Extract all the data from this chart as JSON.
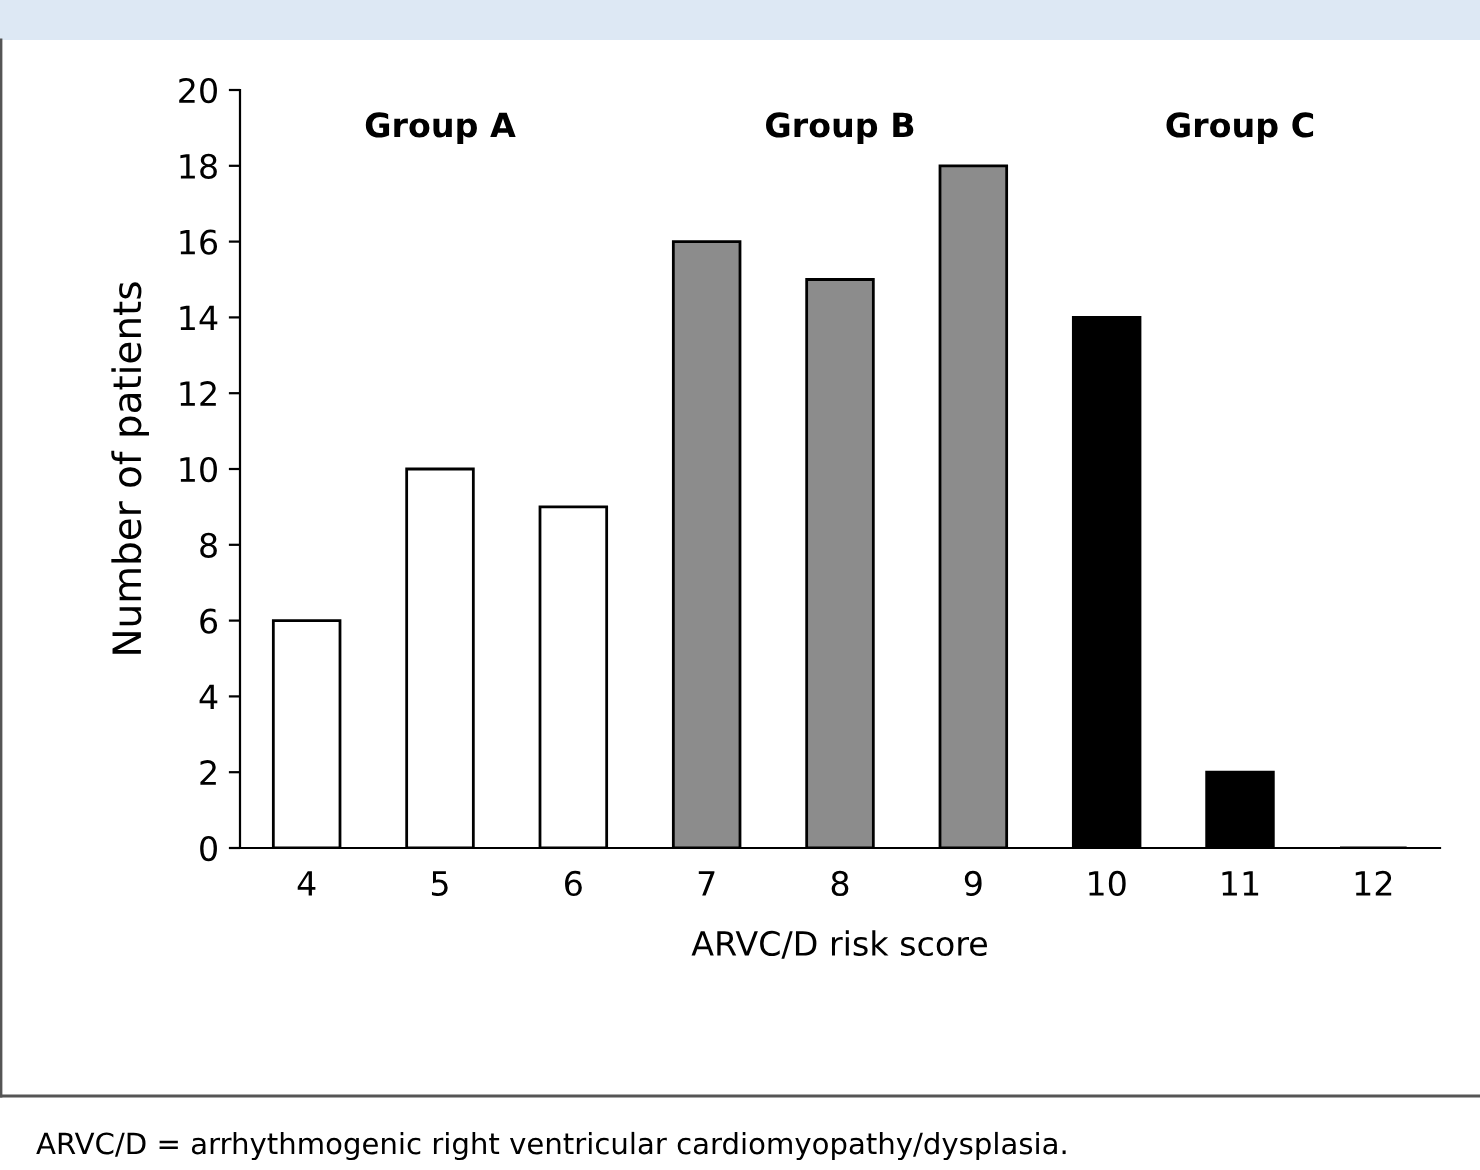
{
  "chart_data": {
    "type": "bar",
    "xlabel": "ARVC/D risk score",
    "ylabel": "Number of patients",
    "categories": [
      "4",
      "5",
      "6",
      "7",
      "8",
      "9",
      "10",
      "11",
      "12"
    ],
    "values": [
      6,
      10,
      9,
      16,
      15,
      18,
      14,
      2,
      0
    ],
    "colors": [
      "#ffffff",
      "#ffffff",
      "#ffffff",
      "#8c8c8c",
      "#8c8c8c",
      "#8c8c8c",
      "#000000",
      "#000000",
      "#000000"
    ],
    "ylim": [
      0,
      20
    ],
    "yticks": [
      0,
      2,
      4,
      6,
      8,
      10,
      12,
      14,
      16,
      18,
      20
    ],
    "grid": false,
    "legend": false,
    "annotations": [
      "Group A",
      "Group B",
      "Group C",
      "ARVC/D = arrhythmogenic right ventricular cardiomyopathy/dysplasia."
    ]
  }
}
